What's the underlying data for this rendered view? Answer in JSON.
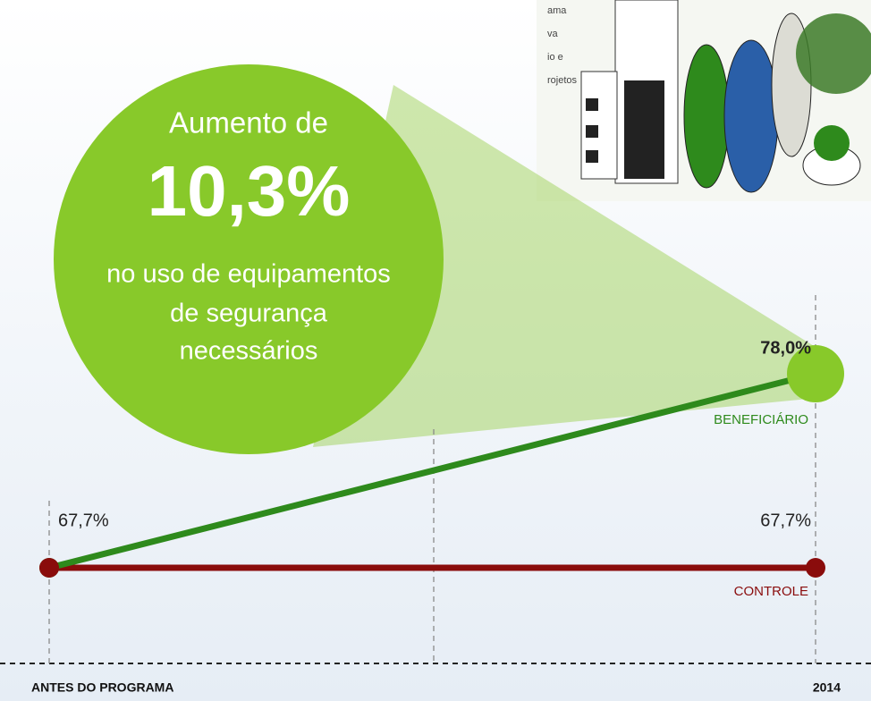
{
  "chart_data": {
    "type": "line",
    "categories": [
      "ANTES DO PROGRAMA",
      "2014"
    ],
    "series": [
      {
        "name": "BENEFICIÁRIO",
        "color": "#2e8a1c",
        "values": [
          67.7,
          78.0
        ],
        "value_labels": [
          "67,7%",
          "78,0%"
        ]
      },
      {
        "name": "CONTROLE",
        "color": "#8a0c0c",
        "values": [
          67.7,
          67.7
        ],
        "value_labels": [
          null,
          "67,7%"
        ]
      }
    ],
    "annotation": {
      "lead": "Aumento de",
      "highlight": "10,3%",
      "lines": [
        "no uso de equipamentos",
        "de segurança",
        "necessários"
      ]
    },
    "image_text": [
      "ama",
      "va",
      "io e",
      "rojetos"
    ]
  }
}
